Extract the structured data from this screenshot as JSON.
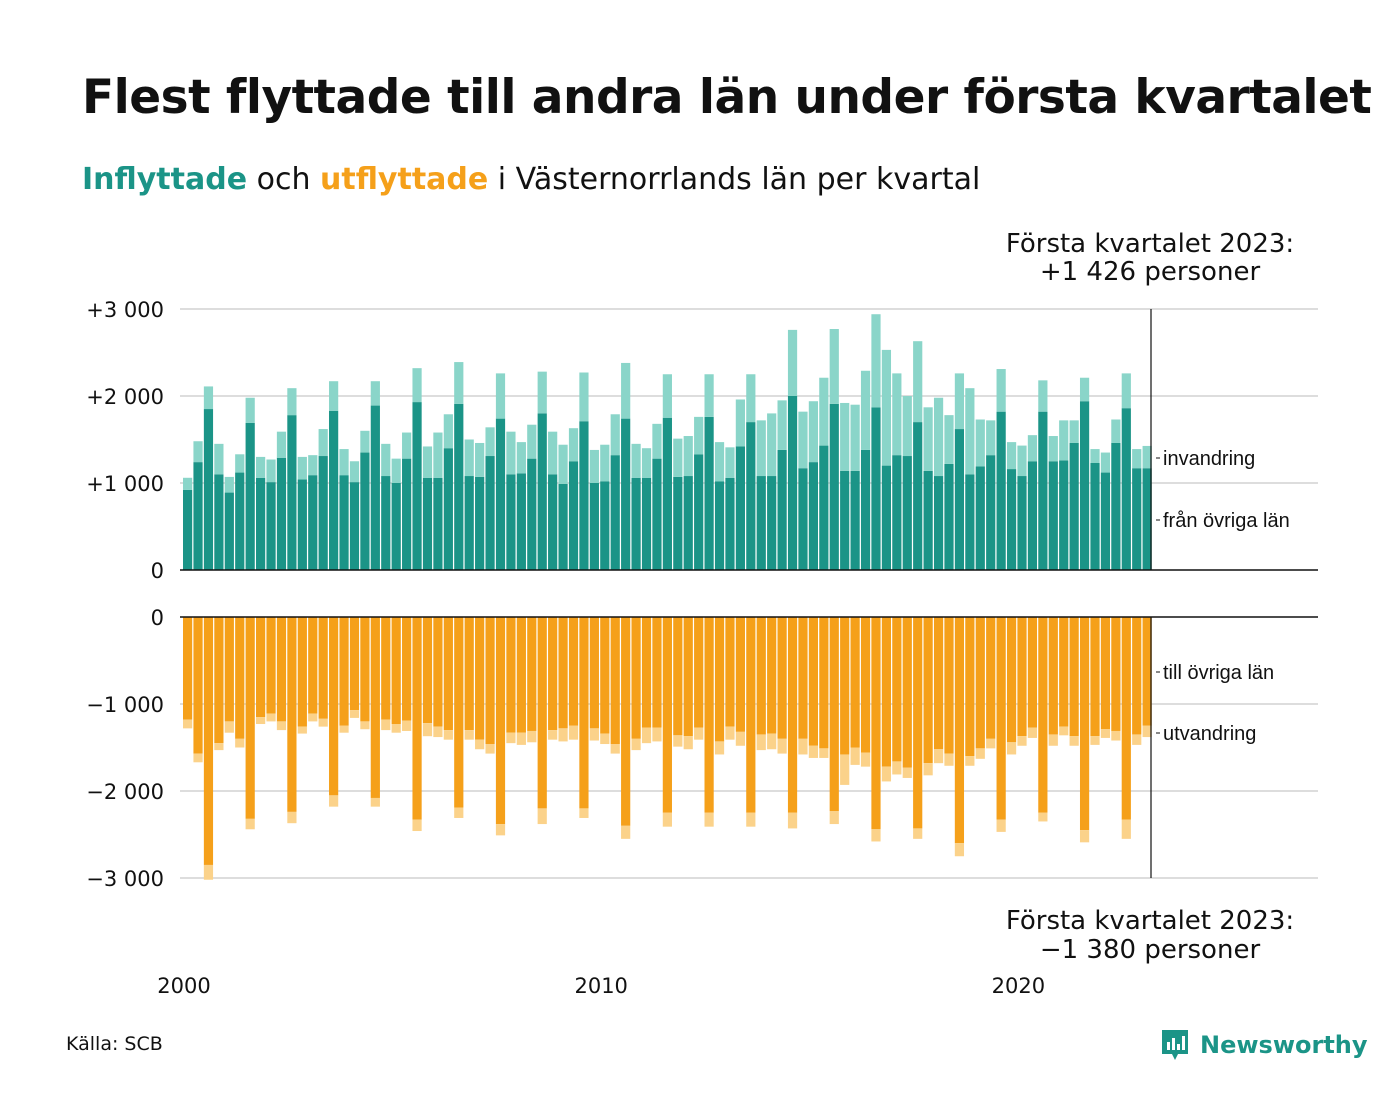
{
  "title": "Flest flyttade till andra län under första kvartalet",
  "subtitle": {
    "in_word": "Inflyttade",
    "mid": " och ",
    "out_word": "utflyttade",
    "rest": " i Västernorrlands län per kvartal"
  },
  "source": "Källa: SCB",
  "logo": {
    "name": "Newsworthy",
    "icon": "bar-chart-speech-icon"
  },
  "colors": {
    "in_dark": "#1b9487",
    "in_light": "#8ad5c9",
    "out_dark": "#f5a01a",
    "out_light": "#fbd28a",
    "grid": "#dddddd"
  },
  "chart_data": [
    {
      "type": "bar",
      "stacked": true,
      "panel": "inflyttade",
      "x_ticks": [
        "2000",
        "2010",
        "2020"
      ],
      "y_ticks": [
        "+3 000",
        "+2 000",
        "+1 000",
        "0"
      ],
      "ylim": [
        0,
        3000
      ],
      "series_labels": {
        "domestic": "från övriga län",
        "immigration": "invandring"
      },
      "annotation": {
        "line1": "Första kvartalet 2023:",
        "line2": "+1 426 personer"
      },
      "start": "2000 Q1",
      "series": [
        {
          "name": "från övriga län",
          "values": [
            920,
            1240,
            1850,
            1100,
            890,
            1120,
            1690,
            1060,
            1010,
            1290,
            1780,
            1040,
            1090,
            1310,
            1830,
            1090,
            1010,
            1350,
            1890,
            1080,
            1000,
            1280,
            1930,
            1060,
            1060,
            1400,
            1910,
            1080,
            1070,
            1310,
            1740,
            1100,
            1110,
            1280,
            1800,
            1100,
            990,
            1250,
            1710,
            1000,
            1020,
            1320,
            1740,
            1060,
            1060,
            1280,
            1750,
            1070,
            1080,
            1330,
            1760,
            1020,
            1060,
            1420,
            1700,
            1080,
            1080,
            1380,
            2000,
            1170,
            1240,
            1430,
            1910,
            1140,
            1140,
            1380,
            1870,
            1200,
            1320,
            1310,
            1700,
            1140,
            1080,
            1220,
            1620,
            1100,
            1190,
            1320,
            1820,
            1160,
            1080,
            1250,
            1820,
            1250,
            1260,
            1460,
            1940,
            1230,
            1120,
            1460,
            1860,
            1170,
            1170
          ]
        },
        {
          "name": "invandring",
          "values": [
            140,
            240,
            260,
            350,
            180,
            210,
            290,
            240,
            260,
            300,
            310,
            260,
            230,
            310,
            340,
            300,
            240,
            250,
            280,
            370,
            280,
            300,
            390,
            360,
            520,
            390,
            480,
            420,
            390,
            330,
            520,
            490,
            360,
            390,
            480,
            490,
            450,
            380,
            560,
            380,
            420,
            470,
            640,
            390,
            340,
            400,
            500,
            440,
            460,
            430,
            490,
            450,
            350,
            540,
            550,
            640,
            720,
            570,
            760,
            650,
            700,
            780,
            860,
            780,
            760,
            910,
            1070,
            1330,
            940,
            690,
            930,
            730,
            900,
            560,
            640,
            990,
            540,
            400,
            490,
            310,
            350,
            300,
            360,
            290,
            460,
            260,
            270,
            160,
            230,
            270,
            400,
            220,
            256
          ]
        }
      ]
    },
    {
      "type": "bar",
      "stacked": true,
      "panel": "utflyttade",
      "x_ticks": [
        "2000",
        "2010",
        "2020"
      ],
      "y_ticks": [
        "0",
        "−1 000",
        "−2 000",
        "−3 000"
      ],
      "ylim": [
        -3000,
        0
      ],
      "series_labels": {
        "domestic": "till övriga län",
        "emigration": "utvandring"
      },
      "annotation": {
        "line1": "Första kvartalet 2023:",
        "line2": "−1 380 personer"
      },
      "start": "2000 Q1",
      "series": [
        {
          "name": "till övriga län",
          "values": [
            -1180,
            -1570,
            -2850,
            -1450,
            -1200,
            -1400,
            -2320,
            -1150,
            -1110,
            -1200,
            -2240,
            -1260,
            -1110,
            -1170,
            -2050,
            -1250,
            -1070,
            -1200,
            -2080,
            -1180,
            -1230,
            -1190,
            -2330,
            -1220,
            -1260,
            -1300,
            -2190,
            -1300,
            -1410,
            -1460,
            -2380,
            -1330,
            -1330,
            -1310,
            -2200,
            -1300,
            -1280,
            -1250,
            -2200,
            -1280,
            -1340,
            -1460,
            -2400,
            -1400,
            -1270,
            -1270,
            -2250,
            -1360,
            -1370,
            -1270,
            -2250,
            -1430,
            -1260,
            -1320,
            -2250,
            -1350,
            -1340,
            -1400,
            -2250,
            -1400,
            -1480,
            -1510,
            -2230,
            -1580,
            -1500,
            -1560,
            -2440,
            -1720,
            -1660,
            -1730,
            -2430,
            -1680,
            -1520,
            -1570,
            -2600,
            -1600,
            -1510,
            -1400,
            -2330,
            -1440,
            -1370,
            -1270,
            -2250,
            -1350,
            -1260,
            -1370,
            -2450,
            -1370,
            -1290,
            -1310,
            -2330,
            -1350,
            -1250
          ]
        },
        {
          "name": "utvandring",
          "values": [
            -100,
            -100,
            -170,
            -80,
            -130,
            -100,
            -120,
            -80,
            -90,
            -100,
            -130,
            -80,
            -90,
            -90,
            -130,
            -80,
            -90,
            -90,
            -100,
            -120,
            -100,
            -120,
            -130,
            -150,
            -120,
            -110,
            -120,
            -110,
            -110,
            -110,
            -130,
            -120,
            -140,
            -130,
            -180,
            -110,
            -150,
            -160,
            -110,
            -140,
            -120,
            -110,
            -150,
            -130,
            -180,
            -160,
            -160,
            -130,
            -150,
            -140,
            -160,
            -150,
            -150,
            -160,
            -160,
            -180,
            -180,
            -170,
            -180,
            -180,
            -140,
            -110,
            -150,
            -350,
            -200,
            -160,
            -140,
            -170,
            -150,
            -120,
            -120,
            -140,
            -160,
            -140,
            -150,
            -110,
            -120,
            -110,
            -140,
            -140,
            -110,
            -120,
            -100,
            -130,
            -100,
            -110,
            -140,
            -100,
            -100,
            -110,
            -220,
            -120,
            -130
          ]
        }
      ]
    }
  ]
}
